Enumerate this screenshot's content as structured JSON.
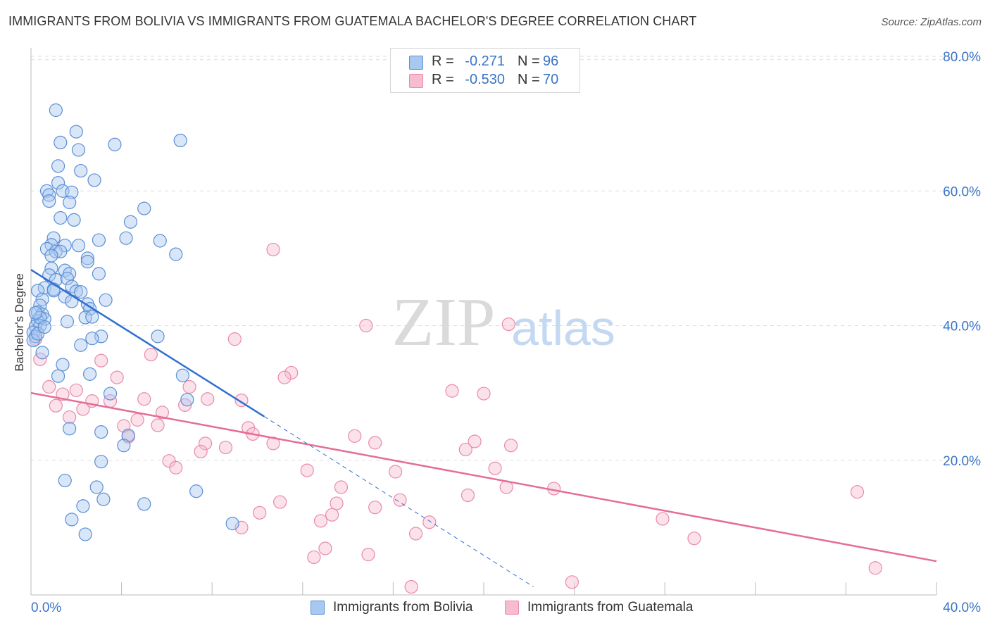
{
  "header": {
    "title": "IMMIGRANTS FROM BOLIVIA VS IMMIGRANTS FROM GUATEMALA BACHELOR'S DEGREE CORRELATION CHART",
    "source": "Source: ZipAtlas.com"
  },
  "watermark": {
    "zip": "ZIP",
    "atlas": "atlas"
  },
  "stats": {
    "bolivia": {
      "r_label": "R =",
      "r_value": "-0.271",
      "n_label": "N =",
      "n_value": "96"
    },
    "guatemala": {
      "r_label": "R =",
      "r_value": "-0.530",
      "n_label": "N =",
      "n_value": "70"
    }
  },
  "legend": {
    "bolivia": "Immigrants from Bolivia",
    "guatemala": "Immigrants from Guatemala"
  },
  "colors": {
    "bolivia_fill": "#a9c8f0",
    "bolivia_stroke": "#5b8fd6",
    "bolivia_line": "#2f6fd0",
    "guatemala_fill": "#f7bcd0",
    "guatemala_stroke": "#e98aaa",
    "guatemala_line": "#e56d96",
    "tick_label": "#3a74c8",
    "grid": "#dddddd"
  },
  "chart_data": {
    "type": "scatter",
    "title": "IMMIGRANTS FROM BOLIVIA VS IMMIGRANTS FROM GUATEMALA BACHELOR'S DEGREE CORRELATION CHART",
    "xlabel": "",
    "ylabel": "Bachelor's Degree",
    "xlim": [
      0,
      40
    ],
    "ylim": [
      0,
      80
    ],
    "x_ticks": [
      0,
      4,
      8,
      12,
      16,
      20,
      24,
      28,
      32,
      36,
      40
    ],
    "x_tick_labels": [
      "0.0%",
      "40.0%"
    ],
    "y_ticks": [
      20,
      40,
      60,
      80
    ],
    "y_tick_labels": [
      "20.0%",
      "40.0%",
      "60.0%",
      "80.0%"
    ],
    "grid": "horizontal dashed",
    "legend_position": "bottom",
    "series": [
      {
        "name": "Immigrants from Bolivia",
        "R": -0.271,
        "N": 96,
        "trend": {
          "x": [
            0,
            10.3
          ],
          "y": [
            48.3,
            26.5
          ],
          "dashed_to": [
            22.2,
            1.2
          ]
        },
        "points": [
          [
            1.1,
            72.0
          ],
          [
            2.0,
            68.8
          ],
          [
            1.3,
            67.2
          ],
          [
            3.7,
            66.9
          ],
          [
            6.6,
            67.5
          ],
          [
            2.1,
            66.1
          ],
          [
            1.2,
            63.7
          ],
          [
            2.2,
            63.0
          ],
          [
            2.8,
            61.6
          ],
          [
            1.2,
            61.2
          ],
          [
            0.7,
            60.0
          ],
          [
            1.4,
            60.0
          ],
          [
            1.8,
            59.8
          ],
          [
            0.8,
            59.4
          ],
          [
            0.8,
            58.5
          ],
          [
            1.7,
            58.3
          ],
          [
            5.0,
            57.4
          ],
          [
            1.3,
            56.0
          ],
          [
            1.9,
            55.7
          ],
          [
            4.4,
            55.4
          ],
          [
            1.0,
            53.0
          ],
          [
            3.0,
            52.7
          ],
          [
            4.2,
            53.0
          ],
          [
            5.7,
            52.6
          ],
          [
            0.9,
            52.0
          ],
          [
            1.5,
            51.9
          ],
          [
            2.1,
            51.9
          ],
          [
            0.7,
            51.4
          ],
          [
            1.1,
            51.0
          ],
          [
            1.3,
            51.0
          ],
          [
            0.9,
            50.4
          ],
          [
            6.4,
            50.6
          ],
          [
            2.5,
            50.0
          ],
          [
            2.5,
            49.5
          ],
          [
            0.9,
            48.5
          ],
          [
            1.5,
            48.2
          ],
          [
            0.8,
            47.5
          ],
          [
            1.7,
            47.7
          ],
          [
            3.0,
            47.7
          ],
          [
            1.1,
            46.8
          ],
          [
            1.6,
            47.0
          ],
          [
            0.6,
            45.6
          ],
          [
            1.0,
            45.4
          ],
          [
            1.8,
            45.8
          ],
          [
            2.0,
            45.1
          ],
          [
            2.2,
            45.0
          ],
          [
            0.3,
            45.2
          ],
          [
            1.5,
            44.3
          ],
          [
            0.5,
            43.9
          ],
          [
            3.3,
            43.8
          ],
          [
            1.8,
            43.6
          ],
          [
            2.5,
            43.2
          ],
          [
            0.4,
            43.0
          ],
          [
            2.6,
            42.5
          ],
          [
            0.3,
            42.0
          ],
          [
            0.5,
            41.7
          ],
          [
            0.6,
            41.0
          ],
          [
            2.4,
            41.2
          ],
          [
            2.7,
            41.3
          ],
          [
            0.3,
            40.7
          ],
          [
            1.6,
            40.6
          ],
          [
            0.2,
            39.9
          ],
          [
            0.4,
            40.0
          ],
          [
            0.1,
            39.0
          ],
          [
            0.2,
            38.4
          ],
          [
            3.1,
            38.4
          ],
          [
            5.6,
            38.4
          ],
          [
            2.7,
            38.1
          ],
          [
            0.1,
            37.8
          ],
          [
            2.2,
            37.1
          ],
          [
            0.5,
            36.0
          ],
          [
            1.4,
            34.2
          ],
          [
            1.2,
            32.5
          ],
          [
            2.6,
            32.8
          ],
          [
            6.7,
            32.6
          ],
          [
            3.5,
            29.9
          ],
          [
            6.9,
            29.0
          ],
          [
            1.7,
            24.7
          ],
          [
            3.1,
            24.2
          ],
          [
            4.3,
            23.7
          ],
          [
            4.1,
            22.2
          ],
          [
            3.1,
            19.8
          ],
          [
            1.5,
            17.0
          ],
          [
            2.9,
            16.0
          ],
          [
            7.3,
            15.4
          ],
          [
            3.2,
            14.2
          ],
          [
            5.0,
            13.5
          ],
          [
            2.3,
            13.2
          ],
          [
            1.8,
            11.2
          ],
          [
            8.9,
            10.6
          ],
          [
            2.4,
            9.0
          ],
          [
            0.3,
            38.8
          ],
          [
            0.4,
            41.2
          ],
          [
            1.0,
            45.2
          ],
          [
            0.6,
            39.8
          ],
          [
            0.2,
            41.9
          ]
        ]
      },
      {
        "name": "Immigrants from Guatemala",
        "R": -0.53,
        "N": 70,
        "trend": {
          "x": [
            0,
            40
          ],
          "y": [
            30.0,
            5.0
          ]
        },
        "points": [
          [
            0.2,
            38.0
          ],
          [
            0.4,
            35.0
          ],
          [
            10.7,
            51.3
          ],
          [
            14.8,
            40.0
          ],
          [
            21.1,
            40.2
          ],
          [
            9.0,
            38.0
          ],
          [
            5.3,
            35.7
          ],
          [
            3.1,
            34.8
          ],
          [
            11.5,
            33.0
          ],
          [
            11.2,
            32.3
          ],
          [
            3.8,
            32.3
          ],
          [
            0.8,
            30.9
          ],
          [
            7.0,
            30.9
          ],
          [
            1.4,
            29.8
          ],
          [
            2.0,
            30.4
          ],
          [
            18.6,
            30.3
          ],
          [
            20.0,
            29.9
          ],
          [
            5.0,
            29.1
          ],
          [
            7.8,
            29.1
          ],
          [
            9.3,
            28.9
          ],
          [
            2.7,
            28.8
          ],
          [
            3.5,
            28.8
          ],
          [
            6.8,
            28.2
          ],
          [
            1.1,
            28.1
          ],
          [
            2.3,
            27.6
          ],
          [
            5.8,
            27.1
          ],
          [
            1.7,
            26.4
          ],
          [
            4.7,
            26.0
          ],
          [
            4.1,
            25.1
          ],
          [
            5.6,
            25.2
          ],
          [
            9.6,
            24.8
          ],
          [
            9.8,
            23.9
          ],
          [
            4.3,
            23.5
          ],
          [
            14.3,
            23.6
          ],
          [
            21.2,
            22.2
          ],
          [
            15.2,
            22.6
          ],
          [
            19.6,
            22.8
          ],
          [
            7.7,
            22.5
          ],
          [
            10.7,
            22.5
          ],
          [
            8.6,
            21.9
          ],
          [
            7.5,
            21.3
          ],
          [
            19.2,
            21.6
          ],
          [
            6.1,
            19.9
          ],
          [
            6.4,
            18.9
          ],
          [
            12.2,
            18.5
          ],
          [
            16.1,
            18.3
          ],
          [
            20.5,
            18.8
          ],
          [
            13.7,
            16.0
          ],
          [
            21.0,
            16.0
          ],
          [
            23.1,
            15.8
          ],
          [
            36.5,
            15.3
          ],
          [
            19.3,
            14.8
          ],
          [
            16.3,
            14.1
          ],
          [
            11.0,
            13.8
          ],
          [
            13.5,
            13.6
          ],
          [
            15.2,
            13.0
          ],
          [
            10.1,
            12.2
          ],
          [
            13.3,
            11.9
          ],
          [
            12.8,
            11.0
          ],
          [
            9.3,
            10.0
          ],
          [
            17.6,
            10.8
          ],
          [
            17.0,
            9.1
          ],
          [
            27.9,
            11.3
          ],
          [
            29.3,
            8.4
          ],
          [
            13.0,
            6.9
          ],
          [
            14.9,
            6.0
          ],
          [
            37.3,
            4.0
          ],
          [
            23.9,
            1.9
          ],
          [
            16.8,
            1.2
          ],
          [
            12.5,
            5.6
          ]
        ]
      }
    ]
  }
}
